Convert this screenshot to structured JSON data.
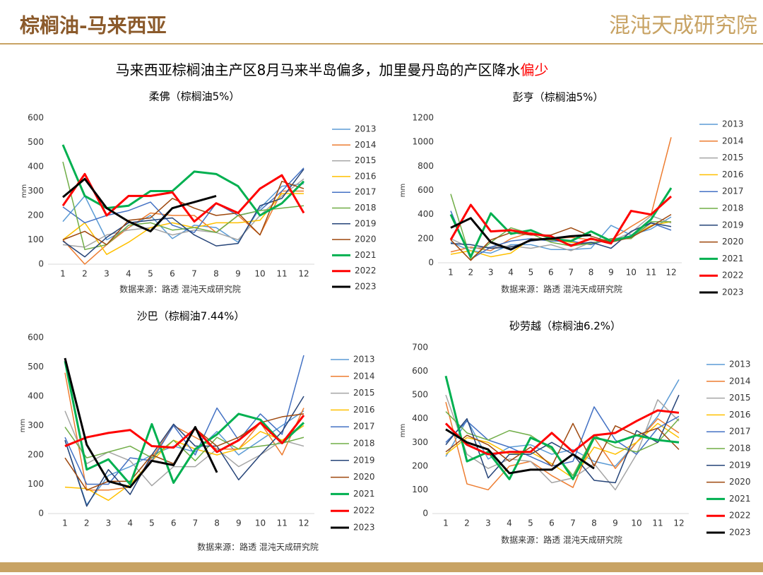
{
  "header": {
    "title": "棕榈油-马来西亚",
    "logo": "混沌天成研究院"
  },
  "headline": {
    "text": "马来西亚棕榈油主产区8月马来半岛偏多，加里曼丹岛的产区降水",
    "highlight": "偏少"
  },
  "chart_data": [
    {
      "type": "line",
      "title": "柔佛（棕榈油5%）",
      "ylabel": "mm",
      "source": "数据来源：路透 混沌天成研究院",
      "categories": [
        "1",
        "2",
        "3",
        "4",
        "5",
        "6",
        "7",
        "8",
        "9",
        "10",
        "11",
        "12"
      ],
      "ylim": [
        0,
        600
      ],
      "yticks": [
        0,
        100,
        200,
        300,
        400,
        500,
        600
      ],
      "series": [
        {
          "name": "2013",
          "color": "#5b9bd5",
          "width": 1.5,
          "values": [
            175,
            280,
            100,
            150,
            200,
            105,
            160,
            150,
            90,
            230,
            320,
            330
          ]
        },
        {
          "name": "2014",
          "color": "#ed7d31",
          "width": 1.5,
          "values": [
            100,
            0,
            80,
            150,
            210,
            200,
            200,
            130,
            200,
            120,
            300,
            300
          ]
        },
        {
          "name": "2015",
          "color": "#a5a5a5",
          "width": 1.5,
          "values": [
            80,
            70,
            120,
            140,
            150,
            120,
            140,
            130,
            100,
            200,
            280,
            350
          ]
        },
        {
          "name": "2016",
          "color": "#ffc000",
          "width": 1.5,
          "values": [
            100,
            170,
            40,
            90,
            150,
            170,
            150,
            170,
            170,
            180,
            290,
            290
          ]
        },
        {
          "name": "2017",
          "color": "#4472c4",
          "width": 1.5,
          "values": [
            235,
            170,
            200,
            220,
            255,
            160,
            130,
            250,
            200,
            220,
            300,
            395
          ]
        },
        {
          "name": "2018",
          "color": "#70ad47",
          "width": 1.5,
          "values": [
            420,
            60,
            80,
            160,
            170,
            140,
            150,
            130,
            200,
            220,
            230,
            240
          ]
        },
        {
          "name": "2019",
          "color": "#264478",
          "width": 1.5,
          "values": [
            95,
            30,
            110,
            170,
            180,
            190,
            120,
            75,
            85,
            240,
            270,
            390
          ]
        },
        {
          "name": "2020",
          "color": "#9e480e",
          "width": 1.5,
          "values": [
            100,
            135,
            80,
            180,
            190,
            270,
            230,
            200,
            210,
            120,
            340,
            310
          ]
        },
        {
          "name": "2021",
          "color": "#00b050",
          "width": 3,
          "values": [
            490,
            280,
            230,
            240,
            300,
            300,
            380,
            370,
            320,
            200,
            250,
            340
          ]
        },
        {
          "name": "2022",
          "color": "#ff0000",
          "width": 3,
          "values": [
            240,
            370,
            200,
            280,
            280,
            295,
            175,
            250,
            210,
            310,
            365,
            210
          ]
        },
        {
          "name": "2023",
          "color": "#000000",
          "width": 3,
          "values": [
            275,
            350,
            230,
            175,
            135,
            230,
            255,
            280,
            null,
            null,
            null,
            null
          ]
        }
      ]
    },
    {
      "type": "line",
      "title": "彭亨（棕榈油5%）",
      "ylabel": "mm",
      "source": "数据来源：路透 混沌天成研究院",
      "categories": [
        "1",
        "2",
        "3",
        "4",
        "5",
        "6",
        "7",
        "8",
        "9",
        "10",
        "11",
        "12"
      ],
      "ylim": [
        0,
        1200
      ],
      "yticks": [
        0,
        200,
        400,
        600,
        800,
        1000,
        1200
      ],
      "series": [
        {
          "name": "2013",
          "color": "#5b9bd5",
          "width": 1.5,
          "values": [
            170,
            100,
            80,
            150,
            150,
            110,
            110,
            120,
            310,
            230,
            280,
            380
          ]
        },
        {
          "name": "2014",
          "color": "#ed7d31",
          "width": 1.5,
          "values": [
            90,
            130,
            100,
            200,
            250,
            200,
            210,
            190,
            190,
            300,
            400,
            1040
          ]
        },
        {
          "name": "2015",
          "color": "#a5a5a5",
          "width": 1.5,
          "values": [
            200,
            120,
            130,
            140,
            120,
            150,
            100,
            170,
            180,
            250,
            390,
            330
          ]
        },
        {
          "name": "2016",
          "color": "#ffc000",
          "width": 1.5,
          "values": [
            70,
            100,
            50,
            80,
            200,
            190,
            170,
            150,
            200,
            210,
            310,
            340
          ]
        },
        {
          "name": "2017",
          "color": "#4472c4",
          "width": 1.5,
          "values": [
            430,
            30,
            130,
            180,
            200,
            180,
            180,
            150,
            200,
            210,
            330,
            270
          ]
        },
        {
          "name": "2018",
          "color": "#70ad47",
          "width": 1.5,
          "values": [
            570,
            30,
            170,
            290,
            240,
            170,
            140,
            160,
            200,
            200,
            340,
            340
          ]
        },
        {
          "name": "2019",
          "color": "#264478",
          "width": 1.5,
          "values": [
            160,
            150,
            120,
            130,
            180,
            200,
            150,
            170,
            120,
            260,
            330,
            300
          ]
        },
        {
          "name": "2020",
          "color": "#9e480e",
          "width": 1.5,
          "values": [
            190,
            20,
            190,
            250,
            230,
            230,
            290,
            220,
            170,
            210,
            300,
            400
          ]
        },
        {
          "name": "2021",
          "color": "#00b050",
          "width": 3,
          "values": [
            400,
            50,
            410,
            240,
            270,
            200,
            180,
            260,
            180,
            220,
            360,
            620
          ]
        },
        {
          "name": "2022",
          "color": "#ff0000",
          "width": 3,
          "values": [
            190,
            480,
            260,
            270,
            240,
            220,
            140,
            200,
            160,
            430,
            400,
            550
          ]
        },
        {
          "name": "2023",
          "color": "#000000",
          "width": 3,
          "values": [
            290,
            370,
            170,
            110,
            190,
            200,
            220,
            230,
            null,
            null,
            null,
            null
          ]
        }
      ]
    },
    {
      "type": "line",
      "title": "沙巴（棕榈油7.44%）",
      "ylabel": "mm",
      "source": "数据来源：路透 混沌天成研究院",
      "categories": [
        "1",
        "2",
        "3",
        "4",
        "5",
        "6",
        "7",
        "8",
        "9",
        "10",
        "11",
        "12"
      ],
      "ylim": [
        0,
        600
      ],
      "yticks": [
        0,
        100,
        200,
        300,
        400,
        500,
        600
      ],
      "series": [
        {
          "name": "2013",
          "color": "#5b9bd5",
          "width": 1.5,
          "values": [
            250,
            30,
            130,
            160,
            200,
            230,
            210,
            280,
            200,
            250,
            300,
            350
          ]
        },
        {
          "name": "2014",
          "color": "#ed7d31",
          "width": 1.5,
          "values": [
            480,
            80,
            80,
            90,
            190,
            300,
            260,
            220,
            220,
            310,
            200,
            360
          ]
        },
        {
          "name": "2015",
          "color": "#a5a5a5",
          "width": 1.5,
          "values": [
            350,
            170,
            210,
            180,
            95,
            160,
            160,
            220,
            160,
            200,
            250,
            230
          ]
        },
        {
          "name": "2016",
          "color": "#ffc000",
          "width": 1.5,
          "values": [
            90,
            85,
            45,
            100,
            180,
            250,
            220,
            200,
            220,
            280,
            250,
            300
          ]
        },
        {
          "name": "2017",
          "color": "#4472c4",
          "width": 1.5,
          "values": [
            260,
            100,
            100,
            190,
            180,
            300,
            200,
            360,
            250,
            340,
            270,
            540
          ]
        },
        {
          "name": "2018",
          "color": "#70ad47",
          "width": 1.5,
          "values": [
            295,
            190,
            210,
            230,
            190,
            250,
            180,
            260,
            220,
            230,
            240,
            260
          ]
        },
        {
          "name": "2019",
          "color": "#264478",
          "width": 1.5,
          "values": [
            250,
            25,
            150,
            65,
            200,
            305,
            230,
            230,
            115,
            200,
            280,
            400
          ]
        },
        {
          "name": "2020",
          "color": "#9e480e",
          "width": 1.5,
          "values": [
            190,
            80,
            110,
            110,
            200,
            170,
            290,
            230,
            260,
            310,
            330,
            340
          ]
        },
        {
          "name": "2021",
          "color": "#00b050",
          "width": 3,
          "values": [
            520,
            150,
            185,
            100,
            305,
            105,
            220,
            270,
            340,
            320,
            240,
            310
          ]
        },
        {
          "name": "2022",
          "color": "#ff0000",
          "width": 3,
          "values": [
            230,
            260,
            275,
            285,
            230,
            225,
            290,
            210,
            250,
            310,
            240,
            335
          ]
        },
        {
          "name": "2023",
          "color": "#000000",
          "width": 3,
          "values": [
            530,
            235,
            110,
            90,
            180,
            165,
            295,
            140,
            null,
            null,
            null,
            null
          ]
        }
      ]
    },
    {
      "type": "line",
      "title": "砂劳越（棕榈油6.2%）",
      "ylabel": "mm",
      "source": "数据来源：路透 混沌天成研究院",
      "categories": [
        "1",
        "2",
        "3",
        "4",
        "5",
        "6",
        "7",
        "8",
        "9",
        "10",
        "11",
        "12"
      ],
      "ylim": [
        0,
        700
      ],
      "yticks": [
        0,
        100,
        200,
        300,
        400,
        500,
        600,
        700
      ],
      "series": [
        {
          "name": "2013",
          "color": "#5b9bd5",
          "width": 1.5,
          "values": [
            240,
            395,
            230,
            280,
            290,
            250,
            270,
            220,
            200,
            300,
            410,
            565
          ]
        },
        {
          "name": "2014",
          "color": "#ed7d31",
          "width": 1.5,
          "values": [
            470,
            125,
            100,
            200,
            220,
            160,
            110,
            320,
            190,
            300,
            400,
            340
          ]
        },
        {
          "name": "2015",
          "color": "#a5a5a5",
          "width": 1.5,
          "values": [
            500,
            250,
            190,
            230,
            220,
            130,
            150,
            210,
            100,
            250,
            480,
            390
          ]
        },
        {
          "name": "2016",
          "color": "#ffc000",
          "width": 1.5,
          "values": [
            250,
            320,
            300,
            250,
            260,
            210,
            150,
            280,
            250,
            300,
            380,
            320
          ]
        },
        {
          "name": "2017",
          "color": "#4472c4",
          "width": 1.5,
          "values": [
            300,
            390,
            310,
            280,
            240,
            200,
            220,
            450,
            310,
            250,
            360,
            410
          ]
        },
        {
          "name": "2018",
          "color": "#70ad47",
          "width": 1.5,
          "values": [
            430,
            340,
            310,
            350,
            330,
            270,
            160,
            330,
            280,
            260,
            300,
            400
          ]
        },
        {
          "name": "2019",
          "color": "#264478",
          "width": 1.5,
          "values": [
            290,
            400,
            150,
            250,
            250,
            300,
            250,
            140,
            130,
            350,
            300,
            500
          ]
        },
        {
          "name": "2020",
          "color": "#9e480e",
          "width": 1.5,
          "values": [
            260,
            330,
            290,
            220,
            280,
            200,
            380,
            200,
            370,
            330,
            360,
            270
          ]
        },
        {
          "name": "2021",
          "color": "#00b050",
          "width": 3,
          "values": [
            580,
            220,
            260,
            145,
            320,
            280,
            145,
            320,
            300,
            330,
            310,
            300
          ]
        },
        {
          "name": "2022",
          "color": "#ff0000",
          "width": 3,
          "values": [
            380,
            290,
            250,
            260,
            260,
            340,
            260,
            330,
            340,
            390,
            435,
            425
          ]
        },
        {
          "name": "2023",
          "color": "#000000",
          "width": 3,
          "values": [
            355,
            300,
            270,
            170,
            185,
            185,
            250,
            190,
            null,
            null,
            null,
            null
          ]
        }
      ]
    }
  ]
}
